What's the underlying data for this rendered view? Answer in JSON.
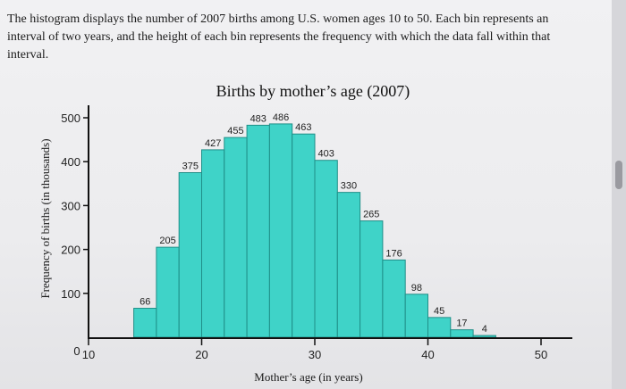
{
  "intro_text": "The histogram displays the number of 2007 births among U.S. women ages 10 to 50. Each bin represents an interval of two years, and the height of each bin represents the frequency with which the data fall within that interval.",
  "chart_data": {
    "type": "bar",
    "title": "Births by mother’s age (2007)",
    "xlabel": "Mother’s age (in years)",
    "ylabel": "Frequency of births (in thousands)",
    "bin_width": 2,
    "bin_starts": [
      14,
      16,
      18,
      20,
      22,
      24,
      26,
      28,
      30,
      32,
      34,
      36,
      38,
      40,
      42,
      44,
      46
    ],
    "values": [
      66,
      205,
      375,
      427,
      455,
      483,
      486,
      463,
      403,
      330,
      265,
      176,
      98,
      45,
      17,
      4,
      0
    ],
    "value_labels": [
      "66",
      "205",
      "375",
      "427",
      "455",
      "483",
      "486",
      "463",
      "403",
      "330",
      "265",
      "176",
      "98",
      "45",
      "17",
      "4",
      ""
    ],
    "ylim": [
      0,
      500
    ],
    "xlim": [
      10,
      50
    ],
    "y_ticks": [
      {
        "value": 0,
        "label": "0"
      },
      {
        "value": 100,
        "label": "100"
      },
      {
        "value": 200,
        "label": "200"
      },
      {
        "value": 300,
        "label": "300"
      },
      {
        "value": 400,
        "label": "400"
      },
      {
        "value": 500,
        "label": "500"
      }
    ],
    "x_ticks": [
      {
        "value": 10,
        "label": "10"
      },
      {
        "value": 20,
        "label": "20"
      },
      {
        "value": 30,
        "label": "30"
      },
      {
        "value": 40,
        "label": "40"
      },
      {
        "value": 50,
        "label": "50"
      }
    ],
    "bar_color": "#3fd3c8",
    "bar_edge_color": "#1f8f88"
  }
}
